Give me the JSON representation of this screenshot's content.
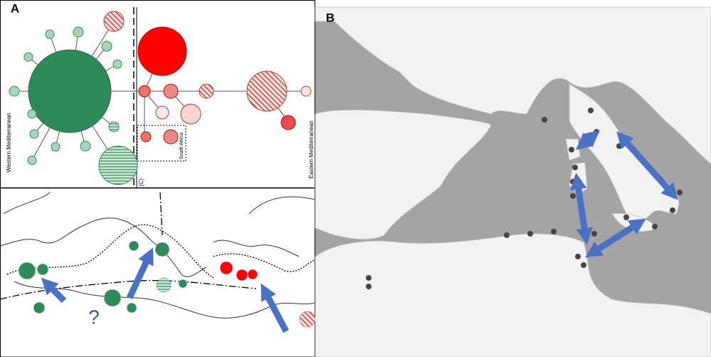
{
  "panel_a": {
    "label": "A",
    "network": {
      "west_label": "Western Mediterranean",
      "east_label": "Eastern Mediterranean",
      "south_label": "South Africa",
      "c_label": "(C)"
    },
    "map": {
      "question": "?"
    }
  },
  "panel_b": {
    "label": "B"
  }
}
